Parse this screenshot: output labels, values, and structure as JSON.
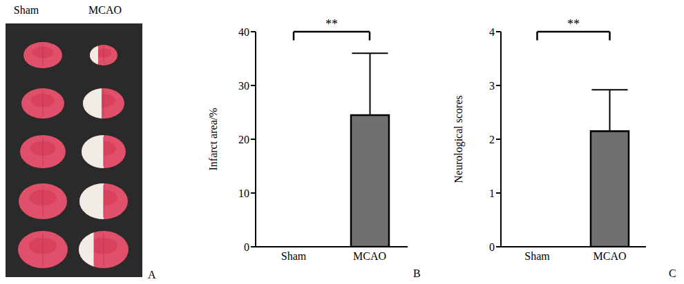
{
  "photo": {
    "panel": "A",
    "columns": [
      "Sham",
      "MCAO"
    ]
  },
  "chart_data": [
    {
      "panel": "B",
      "type": "bar",
      "ylabel": "Infarct area/%",
      "categories": [
        "Sham",
        "MCAO"
      ],
      "values": [
        0,
        24.5
      ],
      "errors": [
        0,
        11.5
      ],
      "color": "#707070",
      "ylim": [
        0,
        40
      ],
      "yticks": [
        0,
        10,
        20,
        30,
        40
      ],
      "significance": "**"
    },
    {
      "panel": "C",
      "type": "bar",
      "ylabel": "Neurological scores",
      "categories": [
        "Sham",
        "MCAO"
      ],
      "values": [
        0,
        2.15
      ],
      "errors": [
        0,
        0.77
      ],
      "color": "#707070",
      "ylim": [
        0,
        4
      ],
      "yticks": [
        0,
        1,
        2,
        3,
        4
      ],
      "significance": "**"
    }
  ]
}
